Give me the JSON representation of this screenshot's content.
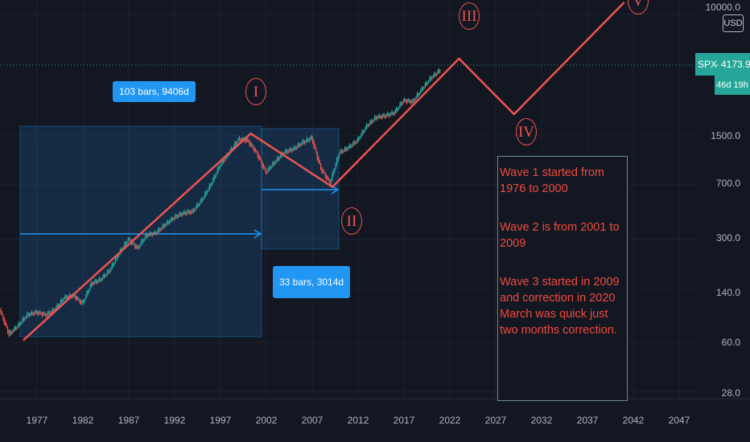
{
  "chart_data": {
    "type": "line",
    "title": "",
    "symbol": "SPX",
    "currency": "USD",
    "last_price": "4173.9",
    "countdown": "46d 19h",
    "scale": "log",
    "grid": true,
    "x_ticks": [
      "1977",
      "1982",
      "1987",
      "1992",
      "1997",
      "2002",
      "2007",
      "2012",
      "2017",
      "2022",
      "2027",
      "2032",
      "2037",
      "2042",
      "2047"
    ],
    "y_ticks": [
      "10000.0",
      "1500.0",
      "700.0",
      "300.0",
      "140.0",
      "60.0",
      "28.0"
    ],
    "price_series": {
      "name": "SPX",
      "x": [
        1973,
        1974,
        1975,
        1976,
        1977,
        1978,
        1979,
        1980,
        1981,
        1982,
        1983,
        1984,
        1985,
        1986,
        1987,
        1988,
        1989,
        1990,
        1991,
        1992,
        1993,
        1994,
        1995,
        1996,
        1997,
        1998,
        1999,
        2000,
        2001,
        2002,
        2003,
        2004,
        2005,
        2006,
        2007,
        2008,
        2009,
        2010,
        2011,
        2012,
        2013,
        2014,
        2015,
        2016,
        2017,
        2018,
        2019,
        2020,
        2021
      ],
      "y": [
        100,
        68,
        78,
        92,
        96,
        92,
        100,
        120,
        125,
        110,
        150,
        160,
        185,
        240,
        300,
        260,
        320,
        330,
        375,
        420,
        450,
        460,
        550,
        700,
        950,
        1150,
        1420,
        1400,
        1150,
        850,
        1000,
        1160,
        1220,
        1350,
        1450,
        900,
        720,
        1150,
        1250,
        1400,
        1750,
        2000,
        2050,
        2150,
        2600,
        2550,
        3100,
        3700,
        4173.9
      ]
    },
    "wave_projection": {
      "x": [
        1975.5,
        2000.3,
        2009.2,
        2023,
        2029,
        2041
      ],
      "y": [
        62,
        1553,
        676,
        5000,
        2100,
        12000
      ],
      "labels": [
        "I",
        "II",
        "III",
        "IV",
        "V"
      ]
    },
    "measurements": [
      {
        "label": "103 bars, 9406d"
      },
      {
        "label": "33 bars, 3014d"
      }
    ],
    "annotation": [
      "Wave 1 started from 1976 to 2000",
      "Wave 2 is from 2001 to 2009",
      "Wave 3 started in 2009 and correction in 2020 March was quick just two months correction."
    ],
    "colors": {
      "background": "#131722",
      "up": "#26a69a",
      "down": "#ef5350",
      "wave": "#ef5350",
      "measure": "#2196f3"
    }
  }
}
